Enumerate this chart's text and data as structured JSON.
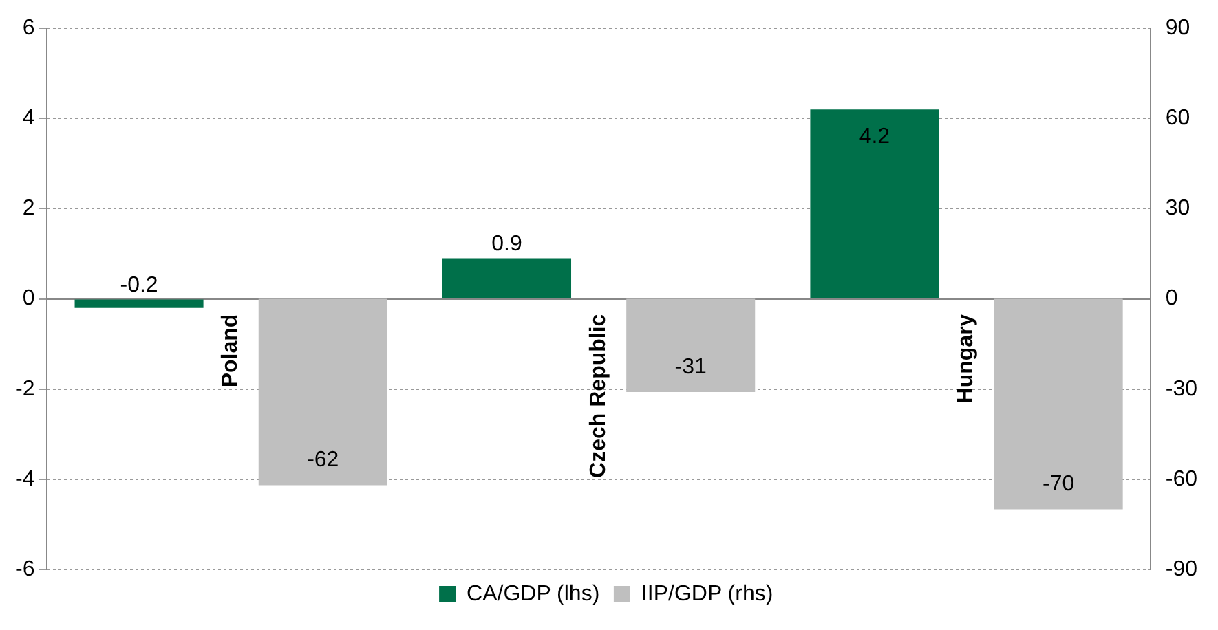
{
  "chart_data": {
    "type": "bar",
    "categories": [
      "Poland",
      "Czech Republic",
      "Hungary"
    ],
    "series": [
      {
        "name": "CA/GDP (lhs)",
        "color": "#00704a",
        "values": [
          -0.2,
          0.9,
          4.2
        ]
      },
      {
        "name": "IIP/GDP (rhs)",
        "color": "#bfbfbf",
        "values": [
          -62,
          -31,
          -70
        ],
        "axis": "y2"
      }
    ],
    "ylim": [
      -6,
      6
    ],
    "yticks": [
      -6,
      -4,
      -2,
      0,
      2,
      4,
      6
    ],
    "y2lim": [
      -90,
      90
    ],
    "y2ticks": [
      -90,
      -60,
      -30,
      0,
      30,
      60,
      90
    ],
    "grid": "y",
    "legend": "bottom",
    "data_labels": true
  }
}
